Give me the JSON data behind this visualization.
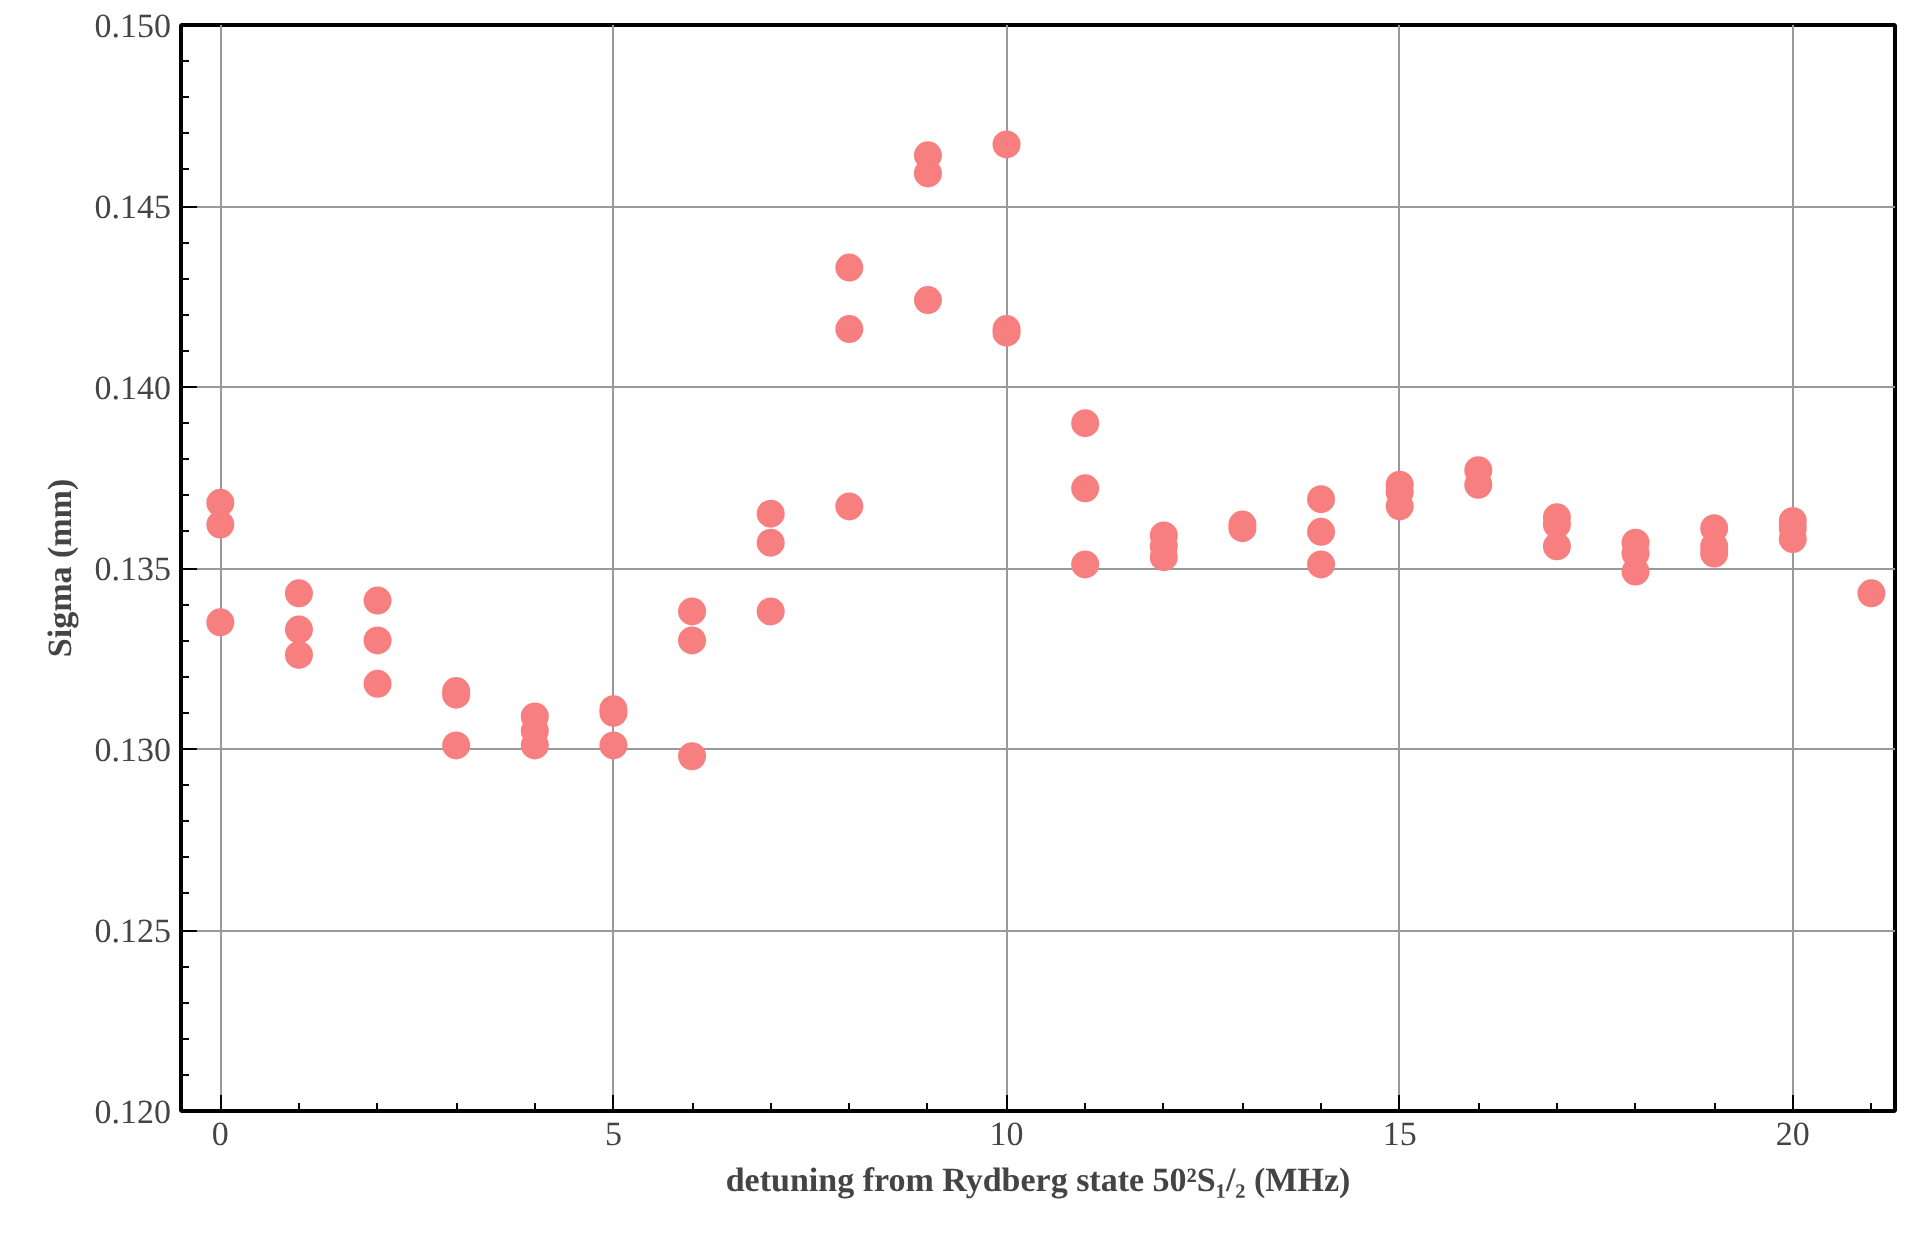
{
  "chart_data": {
    "type": "scatter",
    "xlabel": "detuning from Rydberg state 50²S₁/₂ (MHz)",
    "ylabel": "Sigma (mm)",
    "xlim": [
      -0.5,
      21.3
    ],
    "ylim": [
      0.12,
      0.15
    ],
    "xticks": [
      0,
      5,
      10,
      15,
      20
    ],
    "yticks": [
      {
        "value": 0.12,
        "label": "0.120"
      },
      {
        "value": 0.125,
        "label": "0.125"
      },
      {
        "value": 0.13,
        "label": "0.130"
      },
      {
        "value": 0.135,
        "label": "0.135"
      },
      {
        "value": 0.14,
        "label": "0.140"
      },
      {
        "value": 0.145,
        "label": "0.145"
      },
      {
        "value": 0.15,
        "label": "0.150"
      }
    ],
    "grid": true,
    "marker": "circle",
    "series": [
      {
        "color": "#f77f7f",
        "x": [
          0,
          0,
          0,
          1,
          1,
          1,
          2,
          2,
          2,
          3,
          3,
          3,
          4,
          4,
          4,
          5,
          5,
          5,
          6,
          6,
          6,
          7,
          7,
          7,
          8,
          8,
          8,
          9,
          9,
          9,
          10,
          10,
          10,
          11,
          11,
          11,
          12,
          12,
          12,
          13,
          13,
          14,
          14,
          14,
          15,
          15,
          15,
          16,
          16,
          17,
          17,
          17,
          18,
          18,
          18,
          19,
          19,
          19,
          20,
          20,
          20,
          21
        ],
        "values": [
          0.1368,
          0.1362,
          0.1335,
          0.1343,
          0.1333,
          0.1326,
          0.1341,
          0.133,
          0.1318,
          0.1316,
          0.1315,
          0.1301,
          0.1309,
          0.1305,
          0.1301,
          0.1311,
          0.131,
          0.1301,
          0.1338,
          0.133,
          0.1298,
          0.1365,
          0.1357,
          0.1338,
          0.1433,
          0.1416,
          0.1367,
          0.1464,
          0.1459,
          0.1424,
          0.1467,
          0.1416,
          0.1415,
          0.139,
          0.1372,
          0.1351,
          0.1359,
          0.1356,
          0.1353,
          0.1362,
          0.1361,
          0.1369,
          0.136,
          0.1351,
          0.1373,
          0.1371,
          0.1367,
          0.1377,
          0.1373,
          0.1364,
          0.1362,
          0.1356,
          0.1357,
          0.1354,
          0.1349,
          0.1361,
          0.1356,
          0.1354,
          0.1363,
          0.1361,
          0.1358,
          0.1343
        ]
      }
    ]
  }
}
